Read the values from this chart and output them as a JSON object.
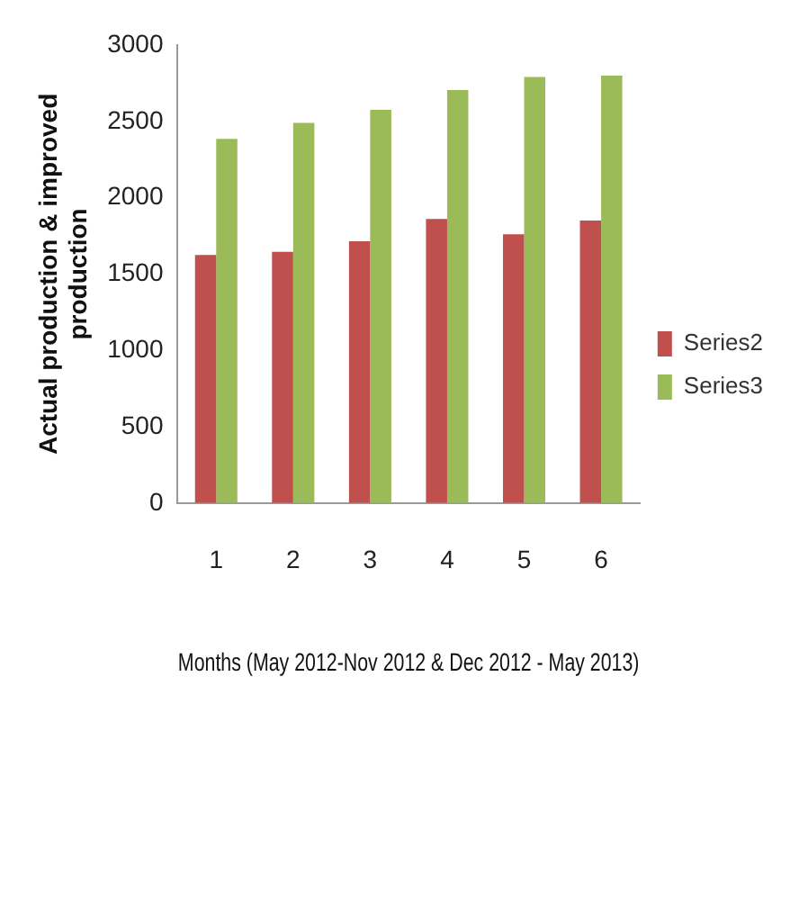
{
  "chart_data": {
    "type": "bar",
    "xlabel": "Months (May 2012-Nov 2012 & Dec 2012 - May 2013)",
    "ylabel": "Actual production & improved production",
    "categories": [
      "1",
      "2",
      "3",
      "4",
      "5",
      "6"
    ],
    "series": [
      {
        "name": "Series2",
        "color": "#c0504d",
        "values": [
          1625,
          1645,
          1715,
          1860,
          1760,
          1850
        ]
      },
      {
        "name": "Series3",
        "color": "#9bbb59",
        "values": [
          2385,
          2490,
          2575,
          2705,
          2790,
          2800
        ]
      }
    ],
    "ylim": [
      0,
      3000
    ],
    "yticks": [
      0,
      500,
      1000,
      1500,
      2000,
      2500,
      3000
    ],
    "grid": false,
    "legend": "right"
  }
}
